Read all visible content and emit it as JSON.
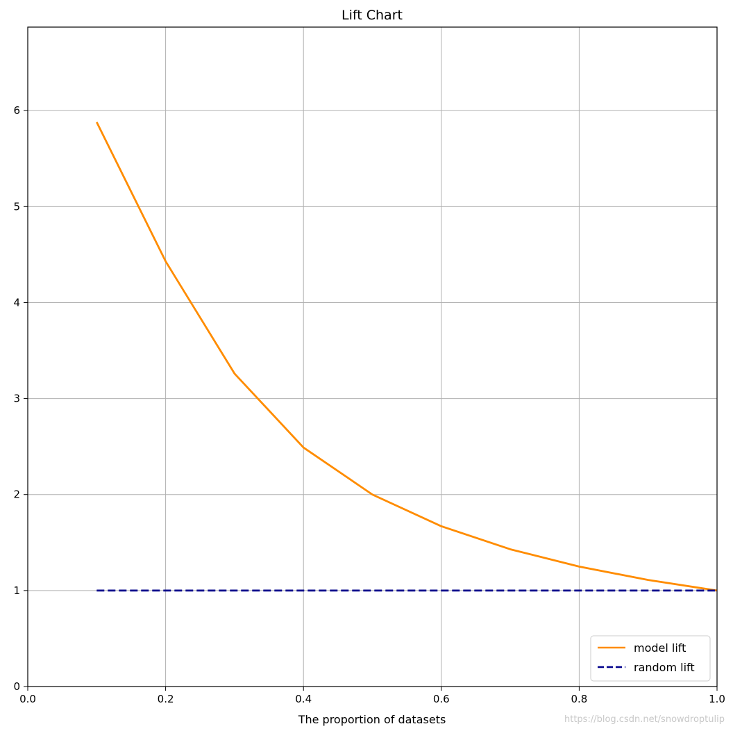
{
  "chart_data": {
    "type": "line",
    "title": "Lift Chart",
    "xlabel": "The proportion of datasets",
    "ylabel": "",
    "xlim": [
      0.0,
      1.0
    ],
    "ylim": [
      0,
      6.87
    ],
    "xticks": [
      0.0,
      0.2,
      0.4,
      0.6,
      0.8,
      1.0
    ],
    "xtick_labels": [
      "0.0",
      "0.2",
      "0.4",
      "0.6",
      "0.8",
      "1.0"
    ],
    "yticks": [
      0,
      1,
      2,
      3,
      4,
      5,
      6
    ],
    "ytick_labels": [
      "0",
      "1",
      "2",
      "3",
      "4",
      "5",
      "6"
    ],
    "grid": true,
    "legend_position": "lower-right",
    "series": [
      {
        "name": "model lift",
        "color": "#ff8c00",
        "style": "solid",
        "x": [
          0.1,
          0.2,
          0.3,
          0.4,
          0.5,
          0.6,
          0.7,
          0.8,
          0.9,
          1.0
        ],
        "y": [
          5.88,
          4.43,
          3.26,
          2.49,
          2.0,
          1.67,
          1.43,
          1.25,
          1.11,
          1.0
        ]
      },
      {
        "name": "random lift",
        "color": "#00008b",
        "style": "dashed",
        "x": [
          0.1,
          0.2,
          0.3,
          0.4,
          0.5,
          0.6,
          0.7,
          0.8,
          0.9,
          1.0
        ],
        "y": [
          1,
          1,
          1,
          1,
          1,
          1,
          1,
          1,
          1,
          1
        ]
      }
    ]
  },
  "watermark": "https://blog.csdn.net/snowdroptulip"
}
